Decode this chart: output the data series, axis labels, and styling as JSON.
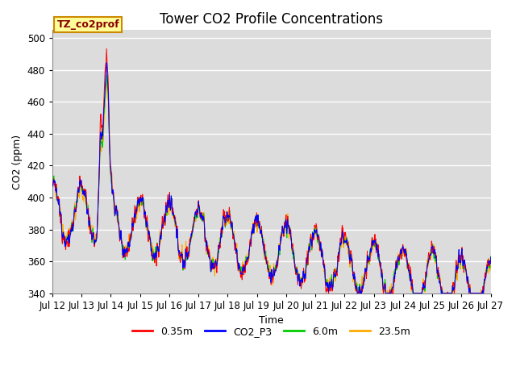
{
  "title": "Tower CO2 Profile Concentrations",
  "xlabel": "Time",
  "ylabel": "CO2 (ppm)",
  "ylim": [
    340,
    505
  ],
  "yticks": [
    340,
    360,
    380,
    400,
    420,
    440,
    460,
    480,
    500
  ],
  "series_colors": {
    "0.35m": "#ff0000",
    "CO2_P3": "#0000ff",
    "6.0m": "#00cc00",
    "23.5m": "#ffaa00"
  },
  "legend_label": "TZ_co2prof",
  "legend_label_bg": "#ffff99",
  "legend_label_border": "#cc8800",
  "bg_color": "#dcdcdc",
  "title_fontsize": 12,
  "axis_fontsize": 9,
  "tick_fontsize": 8.5,
  "n_days": 15,
  "start_day": 12,
  "n_per_day": 96,
  "lw": 0.7
}
